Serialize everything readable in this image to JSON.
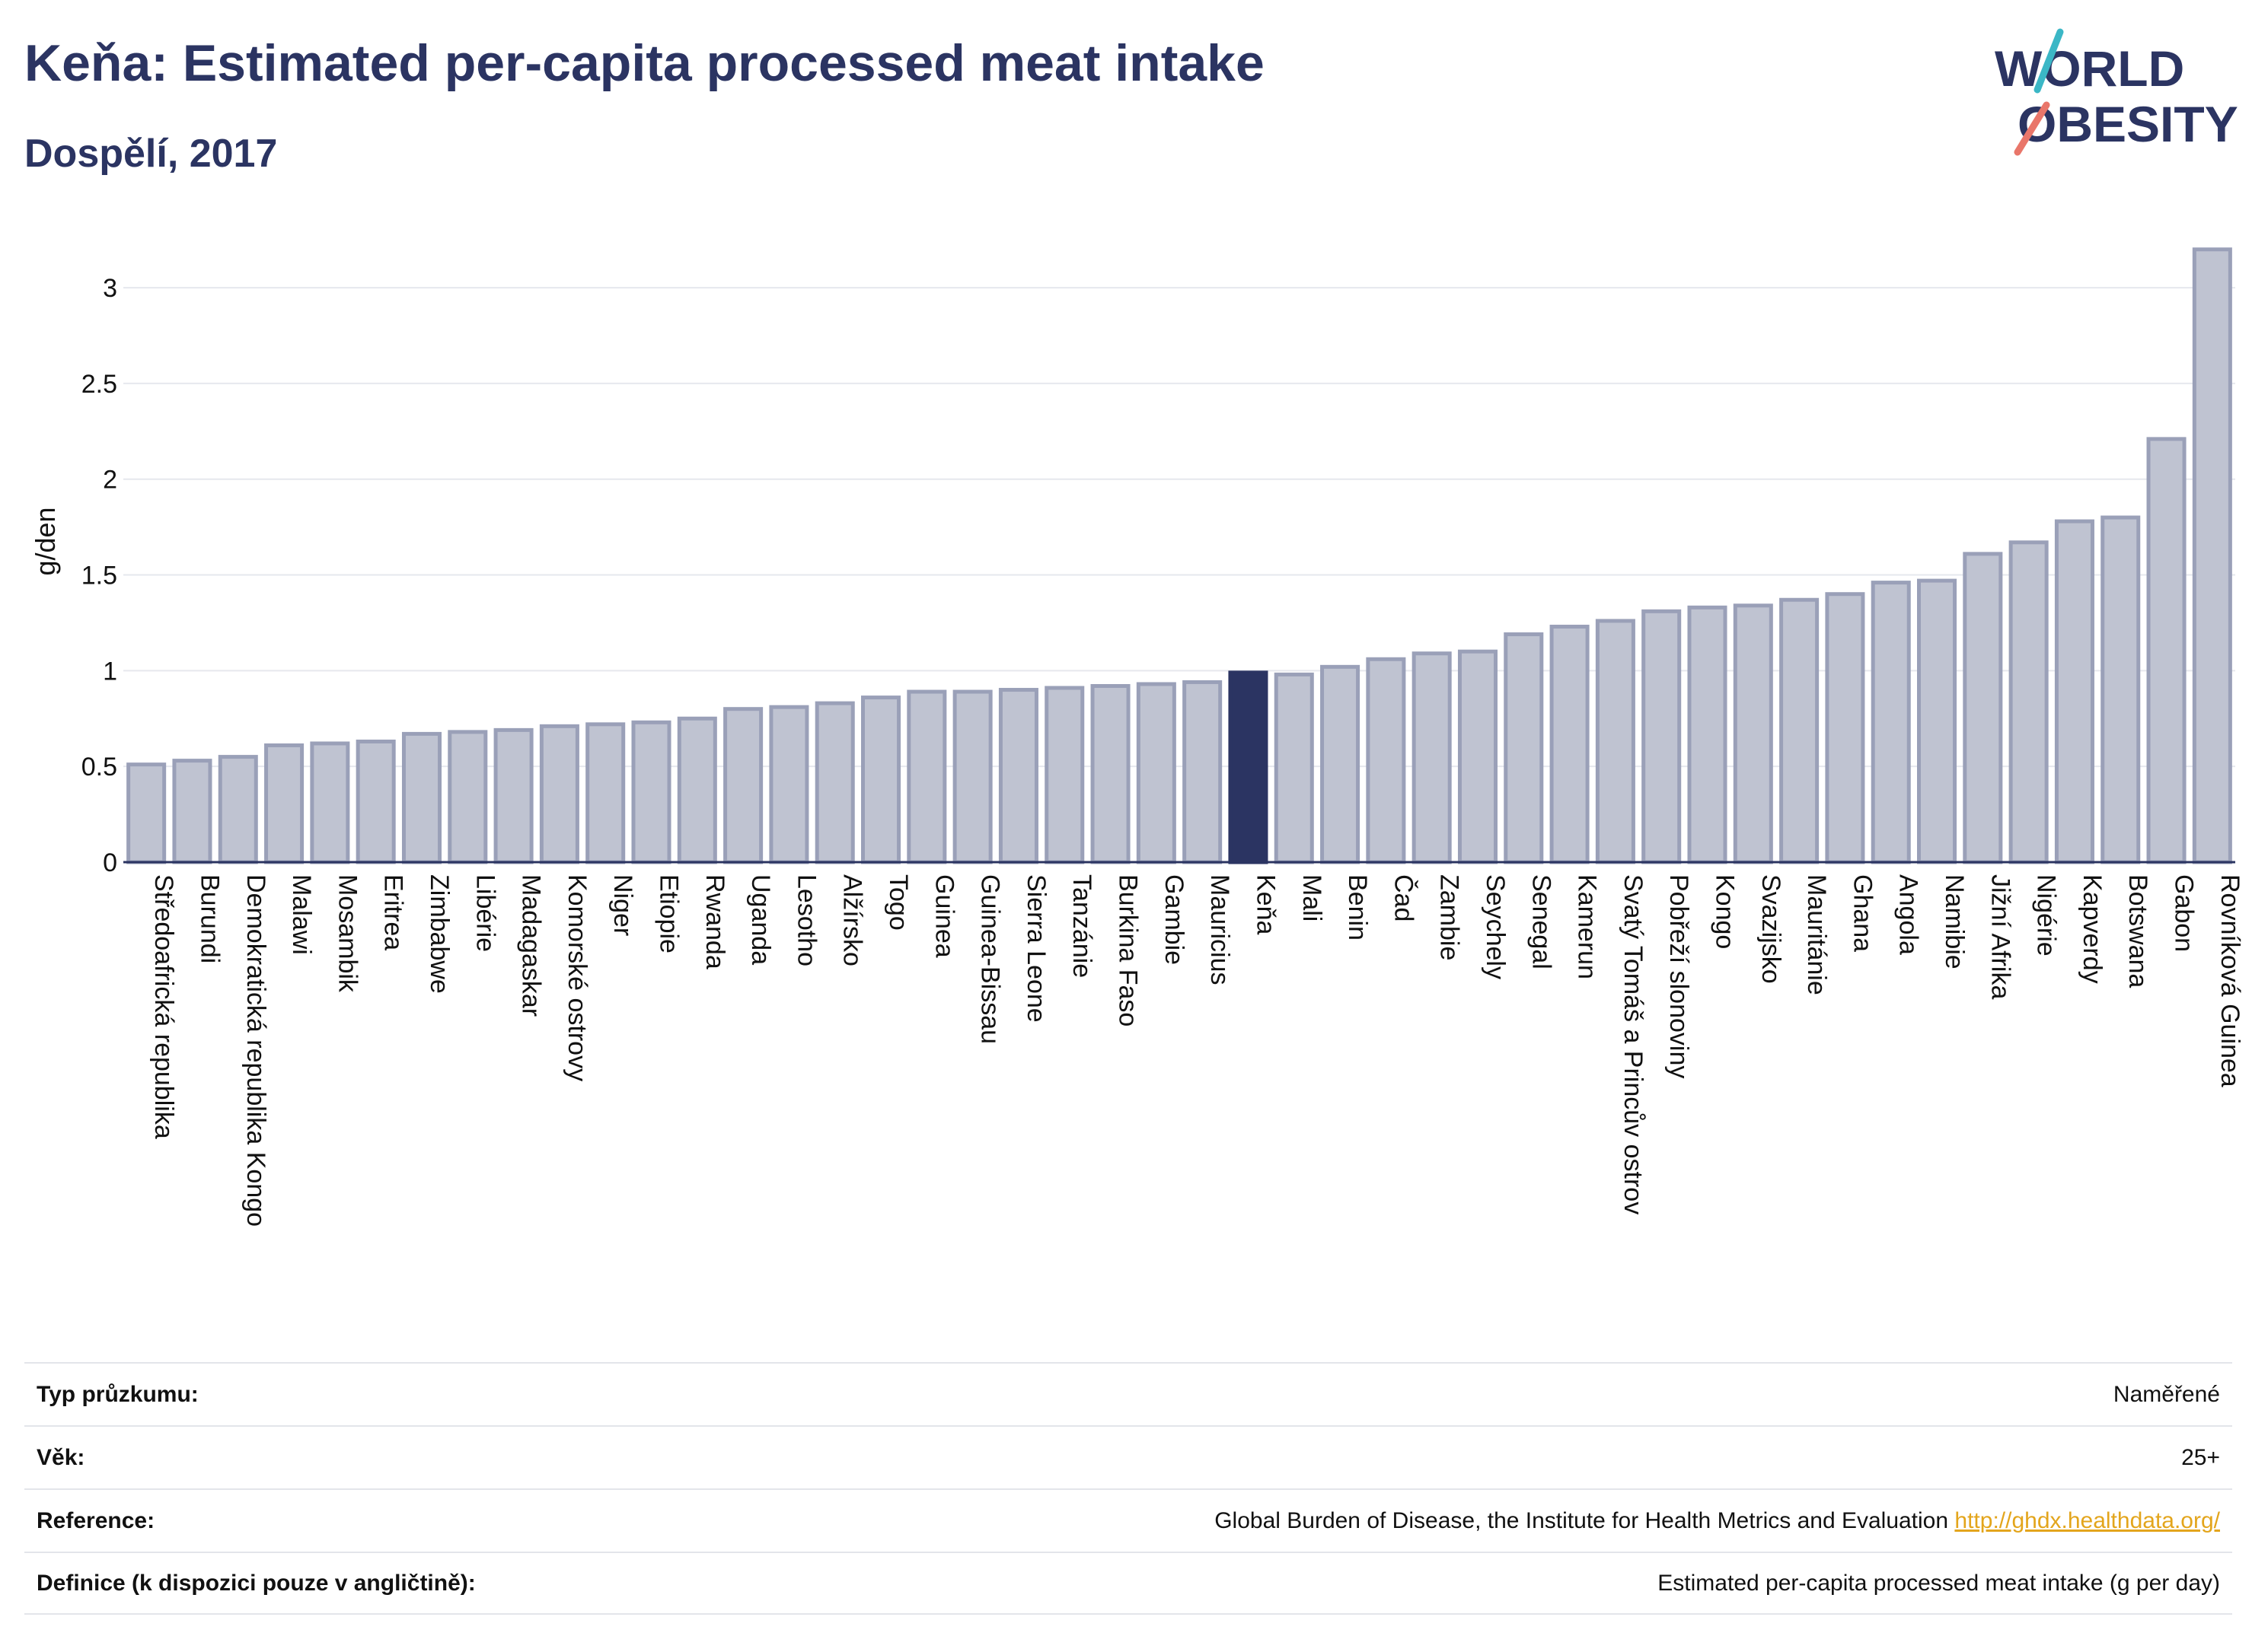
{
  "header": {
    "title": "Keňa: Estimated per-capita processed meat intake",
    "subtitle": "Dospělí, 2017",
    "logo_line1": "WORLD",
    "logo_line2": "OBESITY"
  },
  "colors": {
    "bar": "#bfc3d1",
    "bar_border": "#9aa0b8",
    "highlight": "#2b3462",
    "text": "#2b3462"
  },
  "chart_data": {
    "type": "bar",
    "title": "Keňa: Estimated per-capita processed meat intake",
    "subtitle": "Dospělí, 2017",
    "ylabel": "g/den",
    "xlabel": "",
    "ylim": [
      0,
      3.35
    ],
    "yticks": [
      0,
      0.5,
      1,
      1.5,
      2,
      2.5,
      3
    ],
    "ytick_labels": [
      "0",
      "0.5",
      "1",
      "1.5",
      "2",
      "2.5",
      "3"
    ],
    "grid": true,
    "highlight": "Keňa",
    "categories": [
      "Středoafrická republika",
      "Burundi",
      "Demokratická republika Kongo",
      "Malawi",
      "Mosambik",
      "Eritrea",
      "Zimbabwe",
      "Libérie",
      "Madagaskar",
      "Komorské ostrovy",
      "Niger",
      "Etiopie",
      "Rwanda",
      "Uganda",
      "Lesotho",
      "Alžírsko",
      "Togo",
      "Guinea",
      "Guinea-Bissau",
      "Sierra Leone",
      "Tanzánie",
      "Burkina Faso",
      "Gambie",
      "Mauricius",
      "Keňa",
      "Mali",
      "Benin",
      "Čad",
      "Zambie",
      "Seychely",
      "Senegal",
      "Kamerun",
      "Svatý Tomáš a Princův ostrov",
      "Pobřeží slonoviny",
      "Kongo",
      "Svazijsko",
      "Mauritánie",
      "Ghana",
      "Angola",
      "Namibie",
      "Jižní Afrika",
      "Nigérie",
      "Kapverdy",
      "Botswana",
      "Gabon",
      "Rovníková Guinea"
    ],
    "values": [
      0.51,
      0.53,
      0.55,
      0.61,
      0.62,
      0.63,
      0.67,
      0.68,
      0.69,
      0.71,
      0.72,
      0.73,
      0.75,
      0.8,
      0.81,
      0.83,
      0.86,
      0.89,
      0.89,
      0.9,
      0.91,
      0.92,
      0.93,
      0.94,
      0.99,
      0.98,
      1.02,
      1.06,
      1.09,
      1.1,
      1.19,
      1.23,
      1.26,
      1.31,
      1.33,
      1.34,
      1.37,
      1.4,
      1.46,
      1.47,
      1.61,
      1.67,
      1.78,
      1.8,
      2.21,
      3.2
    ]
  },
  "info": [
    {
      "label": "Typ průzkumu:",
      "value": "Naměřené"
    },
    {
      "label": "Věk:",
      "value": "25+"
    },
    {
      "label": "Reference:",
      "value": "Global Burden of Disease, the Institute for Health Metrics and Evaluation",
      "link": "http://ghdx.healthdata.org/"
    },
    {
      "label": "Definice (k dispozici pouze v angličtině):",
      "value": "Estimated per-capita processed meat intake (g per day)"
    }
  ]
}
